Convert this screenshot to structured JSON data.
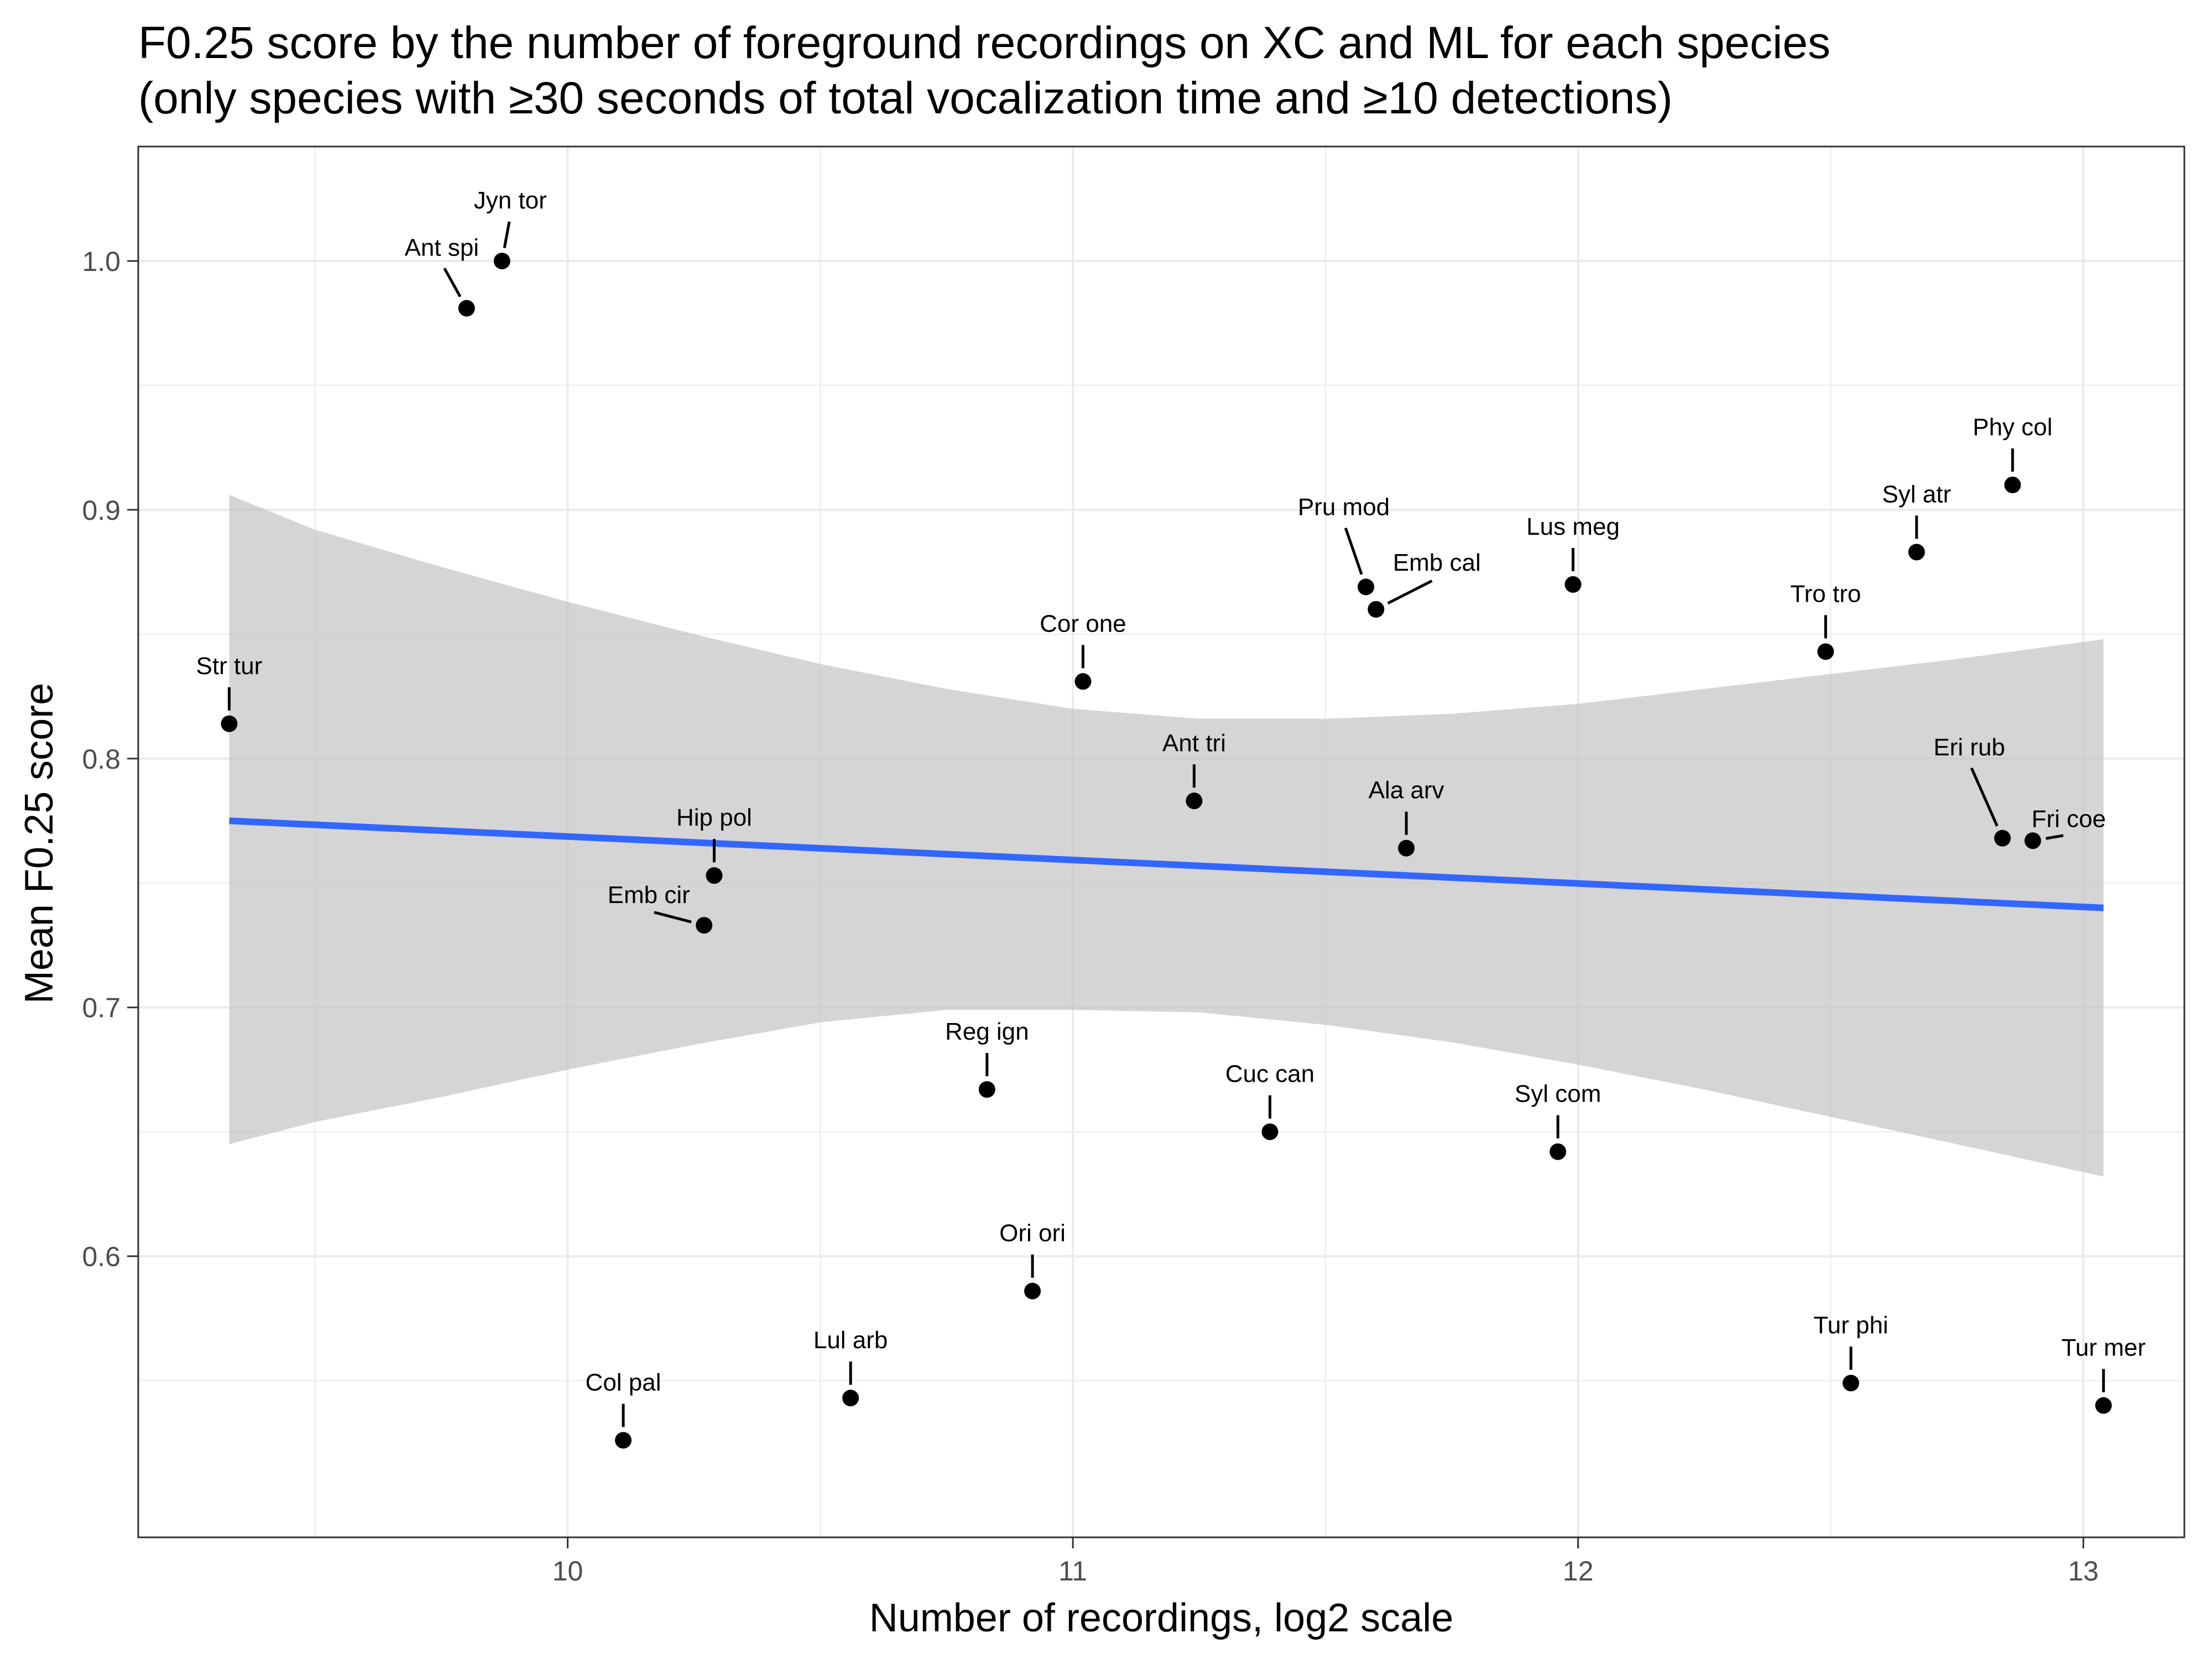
{
  "chart_data": {
    "type": "scatter",
    "title": "F0.25 score by the number of foreground recordings on XC and ML for each species",
    "subtitle": "(only species with ≥30 seconds of total vocalization time and ≥10 detections)",
    "xlabel": "Number of recordings, log2 scale",
    "ylabel": "Mean F0.25 score",
    "xlim": [
      9.15,
      13.2
    ],
    "ylim": [
      0.487,
      1.046
    ],
    "x_ticks": [
      10,
      11,
      12,
      13
    ],
    "y_ticks": [
      0.6,
      0.7,
      0.8,
      0.9,
      1.0
    ],
    "x_tick_labels": [
      "10",
      "11",
      "12",
      "13"
    ],
    "y_tick_labels": [
      "0.6",
      "0.7",
      "0.8",
      "0.9",
      "1.0"
    ],
    "grid": true,
    "legend": "none",
    "colors": {
      "point": "#000000",
      "trend_line": "#3366ff",
      "confidence_band": "#bebebe",
      "grid": "#ebebeb",
      "panel_border": "#333333"
    },
    "points": [
      {
        "label": "Jyn tor",
        "x": 9.87,
        "y": 1.0
      },
      {
        "label": "Ant spi",
        "x": 9.8,
        "y": 0.981
      },
      {
        "label": "Str tur",
        "x": 9.33,
        "y": 0.814
      },
      {
        "label": "Hip pol",
        "x": 10.29,
        "y": 0.753
      },
      {
        "label": "Emb cir",
        "x": 10.27,
        "y": 0.733
      },
      {
        "label": "Col pal",
        "x": 10.11,
        "y": 0.526
      },
      {
        "label": "Lul arb",
        "x": 10.56,
        "y": 0.543
      },
      {
        "label": "Ori ori",
        "x": 10.92,
        "y": 0.586
      },
      {
        "label": "Reg ign",
        "x": 10.83,
        "y": 0.667
      },
      {
        "label": "Cor one",
        "x": 11.02,
        "y": 0.831
      },
      {
        "label": "Ant tri",
        "x": 11.24,
        "y": 0.783
      },
      {
        "label": "Cuc can",
        "x": 11.39,
        "y": 0.65
      },
      {
        "label": "Pru mod",
        "x": 11.58,
        "y": 0.869
      },
      {
        "label": "Emb cal",
        "x": 11.6,
        "y": 0.86
      },
      {
        "label": "Ala arv",
        "x": 11.66,
        "y": 0.764
      },
      {
        "label": "Lus meg",
        "x": 11.99,
        "y": 0.87
      },
      {
        "label": "Syl com",
        "x": 11.96,
        "y": 0.642
      },
      {
        "label": "Tro tro",
        "x": 12.49,
        "y": 0.843
      },
      {
        "label": "Syl atr",
        "x": 12.67,
        "y": 0.883
      },
      {
        "label": "Phy col",
        "x": 12.86,
        "y": 0.91
      },
      {
        "label": "Eri rub",
        "x": 12.84,
        "y": 0.768
      },
      {
        "label": "Fri coe",
        "x": 12.9,
        "y": 0.767
      },
      {
        "label": "Tur phi",
        "x": 12.54,
        "y": 0.549
      },
      {
        "label": "Tur mer",
        "x": 13.04,
        "y": 0.54
      }
    ],
    "trend_line": {
      "x": [
        9.33,
        13.04
      ],
      "y": [
        0.775,
        0.74
      ]
    },
    "confidence_band": {
      "x": [
        9.33,
        9.5,
        9.75,
        10.0,
        10.25,
        10.5,
        10.75,
        11.0,
        11.25,
        11.5,
        11.75,
        12.0,
        12.25,
        12.5,
        12.75,
        13.04
      ],
      "upper": [
        0.906,
        0.892,
        0.877,
        0.863,
        0.85,
        0.838,
        0.828,
        0.82,
        0.816,
        0.816,
        0.818,
        0.822,
        0.828,
        0.834,
        0.84,
        0.848
      ],
      "lower": [
        0.645,
        0.654,
        0.664,
        0.675,
        0.685,
        0.694,
        0.699,
        0.699,
        0.698,
        0.693,
        0.686,
        0.677,
        0.667,
        0.656,
        0.645,
        0.632
      ]
    }
  }
}
